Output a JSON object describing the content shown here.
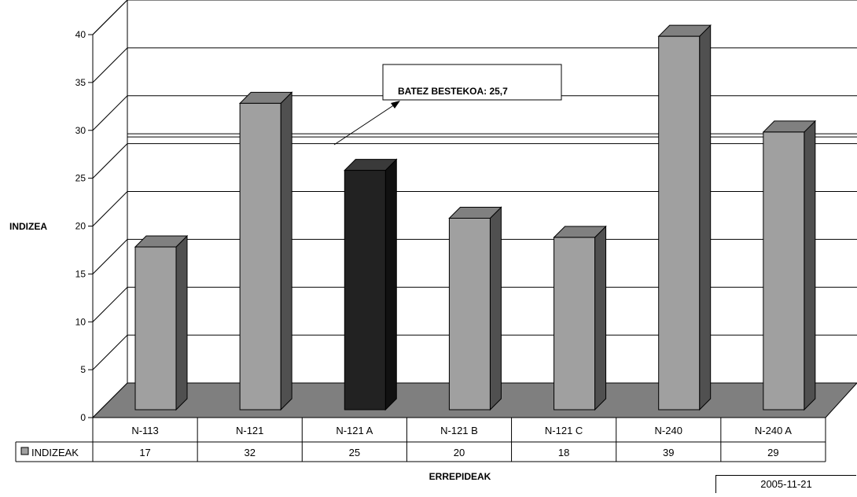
{
  "chart_data": {
    "type": "bar",
    "categories": [
      "N-113",
      "N-121",
      "N-121 A",
      "N-121 B",
      "N-121 C",
      "N-240",
      "N-240 A"
    ],
    "series": [
      {
        "name": "INDIZEAK",
        "values": [
          17,
          32,
          25,
          20,
          18,
          39,
          29
        ]
      }
    ],
    "highlight_category": "N-121 A",
    "ylabel": "INDIZEA",
    "xlabel": "ERREPIDEAK",
    "ylim": [
      0,
      40
    ],
    "yticks": [
      0,
      5,
      10,
      15,
      20,
      25,
      30,
      35,
      40
    ],
    "grid": true,
    "style": "3d-column",
    "legend_placement": "data-table-left",
    "data_table": true,
    "reference_line": {
      "label": "BATEZ BESTEKOA: 25,7",
      "value": 25.7
    },
    "colors": {
      "bar_front": "#a0a0a0",
      "bar_side": "#505050",
      "bar_top": "#808080",
      "highlight_front": "#222222",
      "highlight_side": "#111111",
      "highlight_top": "#3a3a3a",
      "floor": "#7f7f7f"
    }
  },
  "footer": {
    "date": "2005-11-21"
  }
}
